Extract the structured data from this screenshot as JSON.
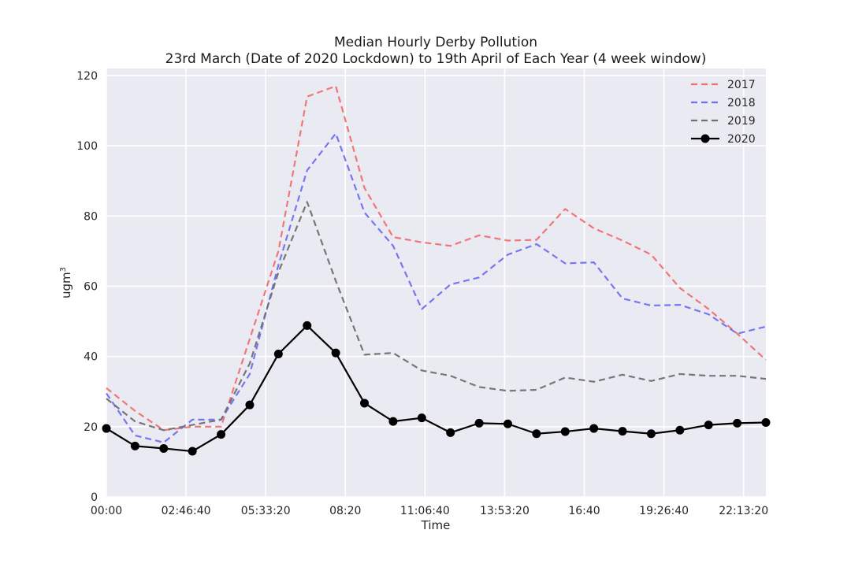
{
  "chart_data": {
    "type": "line",
    "title": "Median Hourly Derby Pollution",
    "subtitle": "23rd March (Date of 2020 Lockdown) to 19th April of Each Year (4 week window)",
    "xlabel": "Time",
    "ylabel": "ugm",
    "ylabel_superscript": "3",
    "x_hours": [
      0,
      1,
      2,
      3,
      4,
      5,
      6,
      7,
      8,
      9,
      10,
      11,
      12,
      13,
      14,
      15,
      16,
      17,
      18,
      19,
      20,
      21,
      22,
      23
    ],
    "x_ticks": [
      {
        "hour": 0,
        "label": "00:00"
      },
      {
        "hour": 2.7778,
        "label": "02:46:40"
      },
      {
        "hour": 5.5556,
        "label": "05:33:20"
      },
      {
        "hour": 8.3333,
        "label": "08:20"
      },
      {
        "hour": 11.1111,
        "label": "11:06:40"
      },
      {
        "hour": 13.8889,
        "label": "13:53:20"
      },
      {
        "hour": 16.6667,
        "label": "16:40"
      },
      {
        "hour": 19.4444,
        "label": "19:26:40"
      },
      {
        "hour": 22.2222,
        "label": "22:13:20"
      }
    ],
    "xlim": [
      0,
      23
    ],
    "ylim": [
      0,
      122
    ],
    "y_ticks": [
      0,
      20,
      40,
      60,
      80,
      100,
      120
    ],
    "grid": true,
    "legend_position": "top-right",
    "series": [
      {
        "name": "2017",
        "color": "#f07070",
        "style": "dashed",
        "markers": false,
        "values": [
          31,
          24.5,
          19,
          20,
          20,
          45,
          70,
          114,
          117,
          88,
          74,
          72.5,
          71.5,
          74.5,
          73,
          73.2,
          82,
          76.5,
          73,
          69,
          59.5,
          53.5,
          46.5,
          39
        ]
      },
      {
        "name": "2018",
        "color": "#7070f0",
        "style": "dashed",
        "markers": false,
        "values": [
          29.5,
          17.5,
          15.5,
          22,
          22,
          35,
          66,
          93,
          103.5,
          81,
          71.5,
          53.5,
          60.5,
          62.5,
          69,
          72,
          66.5,
          66.8,
          56.5,
          54.5,
          54.7,
          52,
          46.5,
          48.5
        ]
      },
      {
        "name": "2019",
        "color": "#707070",
        "style": "dashed",
        "markers": false,
        "values": [
          28,
          21.5,
          19,
          20.5,
          22,
          38,
          64,
          84,
          61.5,
          40.5,
          41,
          36,
          34.5,
          31.3,
          30.2,
          30.5,
          34,
          32.8,
          34.8,
          33,
          35,
          34.5,
          34.5,
          33.6
        ]
      },
      {
        "name": "2020",
        "color": "#000000",
        "style": "solid",
        "markers": true,
        "values": [
          19.5,
          14.5,
          13.8,
          13,
          17.8,
          26.2,
          40.7,
          48.8,
          41,
          26.7,
          21.5,
          22.5,
          18.3,
          21,
          20.8,
          18,
          18.6,
          19.5,
          18.7,
          18,
          19,
          20.5,
          21,
          21.2
        ]
      }
    ]
  }
}
